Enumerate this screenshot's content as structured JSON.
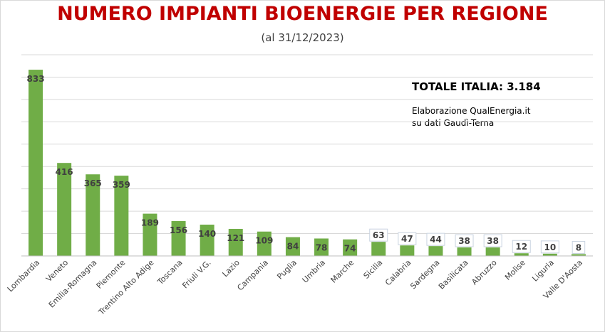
{
  "chart_data": {
    "type": "bar",
    "title": "NUMERO IMPIANTI BIOENERGIE PER REGIONE",
    "subtitle": "(al 31/12/2023)",
    "categories": [
      "Lombardia",
      "Veneto",
      "Emilia-Romagna",
      "Piemonte",
      "Trentino Alto Adige",
      "Toscana",
      "Friuli V.G.",
      "Lazio",
      "Campania",
      "Puglia",
      "Umbria",
      "Marche",
      "Sicilia",
      "Calabria",
      "Sardegna",
      "Basilicata",
      "Abruzzo",
      "Molise",
      "Liguria",
      "Valle D'Aosta"
    ],
    "values": [
      833,
      416,
      365,
      359,
      189,
      156,
      140,
      121,
      109,
      84,
      78,
      74,
      63,
      47,
      44,
      38,
      38,
      12,
      10,
      8
    ],
    "data_labels": [
      "833",
      "416",
      "365",
      "359",
      "189",
      "156",
      "140",
      "121",
      "109",
      "84",
      "78",
      "74",
      "63",
      "47",
      "44",
      "38",
      "38",
      "12",
      "10",
      "8"
    ],
    "ylim": [
      0,
      900
    ],
    "grid": true,
    "bar_color": "#70ad47",
    "annotations": {
      "total": "TOTALE ITALIA: 3.184",
      "credit_line1": "Elaborazione QualEnergia.it",
      "credit_line2": "su dati Gaudì-Terna"
    }
  },
  "colors": {
    "title": "#c00000",
    "bar": "#70ad47",
    "grid": "#d9d9d9"
  }
}
